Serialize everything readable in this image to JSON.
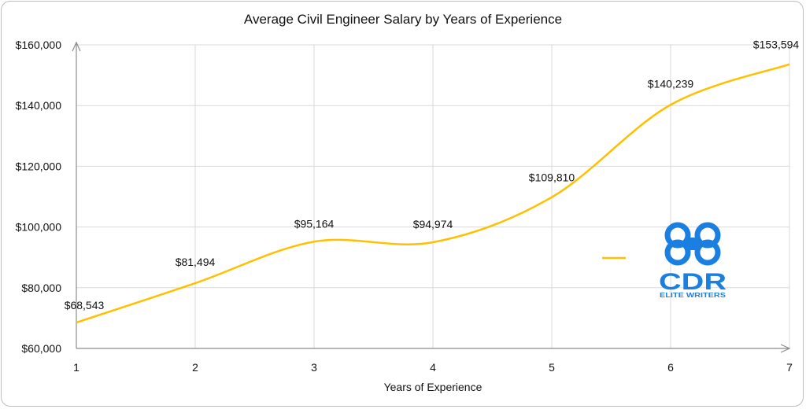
{
  "chart_data": {
    "type": "line",
    "title": "Average Civil Engineer Salary by Years of Experience",
    "xlabel": "Years of Experience",
    "ylabel": "",
    "x": [
      1,
      2,
      3,
      4,
      5,
      6,
      7
    ],
    "series": [
      {
        "values": [
          68543,
          81494,
          95164,
          94974,
          109810,
          140239,
          153594
        ],
        "labels": [
          "$68,543",
          "$81,494",
          "$95,164",
          "$94,974",
          "$109,810",
          "$140,239",
          "$153,594"
        ],
        "color": "#FFC000"
      }
    ],
    "xlim": [
      1,
      7
    ],
    "ylim": [
      60000,
      160000
    ],
    "yticks": [
      60000,
      80000,
      100000,
      120000,
      140000,
      160000
    ],
    "ytick_labels": [
      "$60,000",
      "$80,000",
      "$100,000",
      "$120,000",
      "$140,000",
      "$160,000"
    ],
    "xtick_labels": [
      "1",
      "2",
      "3",
      "4",
      "5",
      "6",
      "7"
    ],
    "grid": true,
    "smooth": true,
    "legend_position": "right"
  },
  "watermark": {
    "primary": "CDR",
    "secondary": "ELITE WRITERS",
    "color": "#1a7fe0"
  }
}
